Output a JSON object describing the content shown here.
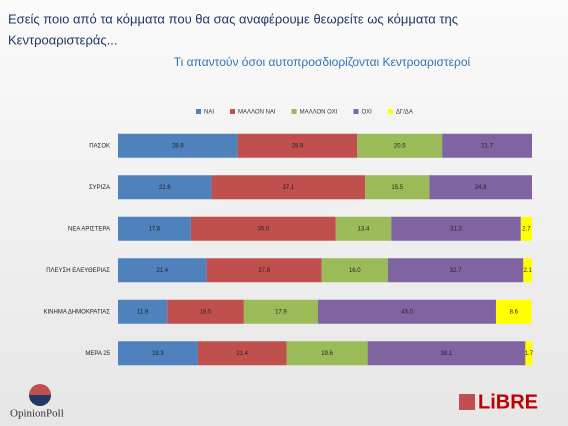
{
  "chart_data": {
    "type": "stacked-bar-horizontal",
    "title": [
      "Εσείς ποιο από τα κόμματα που θα σας αναφέρουμε θεωρείτε ως κόμματα της",
      "Κεντροαριστεράς..."
    ],
    "subtitle": "Τι απαντούν όσοι αυτοπροσδιορίζονται Κεντροαριστεροί",
    "categories": [
      "ΠΑΣΟΚ",
      "ΣΥΡΙΖΑ",
      "ΝΕΑ ΑΡΙΣΤΕΡΑ",
      "ΠΛΕΥΣΗ ΕΛΕΥΘΕΡΙΑΣ",
      "ΚΙΝΗΜΑ ΔΗΜΟΚΡΑΤΙΑΣ",
      "ΜΕΡΑ 25"
    ],
    "series": [
      {
        "name": "ΝΑΙ",
        "color": "#4f81bd",
        "values": [
          28.9,
          22.6,
          17.6,
          21.4,
          11.9,
          19.3
        ],
        "value_labels": [
          "28.9",
          "22.6",
          "17.6",
          "21.4",
          "11.9",
          "19.3"
        ]
      },
      {
        "name": "ΜΑΛΛΟΝ ΝΑΙ",
        "color": "#c0504d",
        "values": [
          28.9,
          37.1,
          35.0,
          27.8,
          18.5,
          21.4
        ],
        "value_labels": [
          "28.9",
          "37.1",
          "35.0",
          "27.8",
          "18.5",
          "21.4"
        ]
      },
      {
        "name": "ΜΑΛΛΟΝ ΟΧΙ",
        "color": "#9bbb59",
        "values": [
          20.5,
          15.5,
          13.4,
          16.0,
          17.9,
          19.6
        ],
        "value_labels": [
          "20.5",
          "15.5",
          "13.4",
          "16.0",
          "17.9",
          "19.6"
        ]
      },
      {
        "name": "ΟΧΙ",
        "color": "#8064a2",
        "values": [
          21.7,
          24.8,
          31.3,
          32.7,
          43.0,
          38.1
        ],
        "value_labels": [
          "21.7",
          "24.8",
          "31.3",
          "32.7",
          "43.0",
          "38.1"
        ]
      },
      {
        "name": "ΔΓ/ΔΑ",
        "color": "#ffff00",
        "values": [
          null,
          null,
          2.7,
          2.1,
          8.6,
          1.7
        ],
        "value_labels": [
          null,
          null,
          "2.7",
          "2.1",
          "8.6",
          "1.7"
        ]
      }
    ],
    "xlim": [
      0,
      100
    ]
  },
  "logos": {
    "left": "OpinionPoll",
    "right": "LiBRE"
  }
}
